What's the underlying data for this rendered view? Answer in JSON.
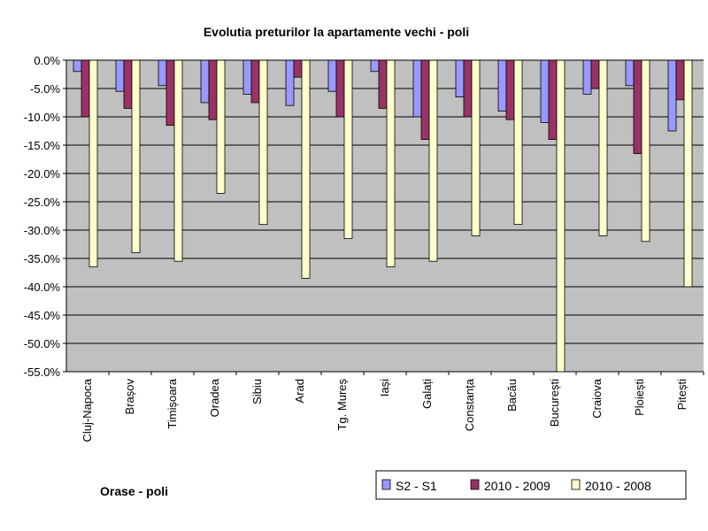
{
  "chart_data": {
    "type": "bar",
    "title": "Evolutia preturilor la apartamente vechi - poli",
    "xlabel": "Orase - poli",
    "ylabel": "",
    "ylim": [
      -55,
      0
    ],
    "yticks": [
      0,
      -5,
      -10,
      -15,
      -20,
      -25,
      -30,
      -35,
      -40,
      -45,
      -50,
      -55
    ],
    "ytick_labels": [
      "0.0%",
      "-5.0%",
      "-10.0%",
      "-15.0%",
      "-20.0%",
      "-25.0%",
      "-30.0%",
      "-35.0%",
      "-40.0%",
      "-45.0%",
      "-50.0%",
      "-55.0%"
    ],
    "grid": true,
    "legend_position": "bottom-right",
    "categories": [
      "Cluj-Napoca",
      "Brașov",
      "Timișoara",
      "Oradea",
      "Sibiu",
      "Arad",
      "Tg. Mureș",
      "Iași",
      "Galați",
      "Constanța",
      "Bacău",
      "București",
      "Craiova",
      "Ploiești",
      "Pitești"
    ],
    "series": [
      {
        "name": "S2 - S1",
        "color": "#9999ff",
        "values": [
          -2.0,
          -5.5,
          -4.5,
          -7.5,
          -6.0,
          -8.0,
          -5.5,
          -2.0,
          -10.0,
          -6.5,
          -9.0,
          -11.0,
          -6.0,
          -4.5,
          -12.5
        ]
      },
      {
        "name": "2010 - 2009",
        "color": "#993366",
        "values": [
          -10.0,
          -8.5,
          -11.5,
          -10.5,
          -7.5,
          -3.0,
          -10.0,
          -8.5,
          -14.0,
          -10.0,
          -10.5,
          -14.0,
          -5.0,
          -16.5,
          -7.0
        ]
      },
      {
        "name": "2010 - 2008",
        "color": "#ffffcc",
        "values": [
          -36.5,
          -34.0,
          -35.5,
          -23.5,
          -29.0,
          -38.5,
          -31.5,
          -36.5,
          -35.5,
          -31.0,
          -29.0,
          -55.0,
          -31.0,
          -32.0,
          -40.0
        ]
      }
    ]
  }
}
